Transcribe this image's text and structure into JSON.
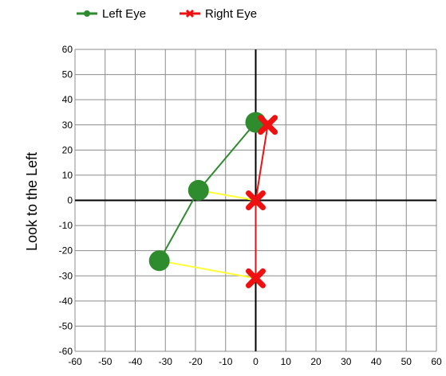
{
  "chart_data": {
    "type": "scatter",
    "title": "",
    "ylabel": "Look to the Left",
    "xlabel": "",
    "xlim": [
      -60,
      60
    ],
    "ylim": [
      -60,
      60
    ],
    "x_ticks": [
      -60,
      -50,
      -40,
      -30,
      -20,
      -10,
      0,
      10,
      20,
      30,
      40,
      50,
      60
    ],
    "y_ticks": [
      60,
      50,
      40,
      30,
      20,
      10,
      0,
      -10,
      -20,
      -30,
      -40,
      -50,
      -60
    ],
    "grid": true,
    "legend_position": "top-left",
    "series": [
      {
        "name": "Left Eye",
        "color": "#2e8b2e",
        "marker": "circle",
        "points": [
          {
            "x": 0,
            "y": 31
          },
          {
            "x": -19,
            "y": 4
          },
          {
            "x": -32,
            "y": -24
          }
        ]
      },
      {
        "name": "Right Eye",
        "color": "#ee1111",
        "marker": "x",
        "points": [
          {
            "x": 4,
            "y": 30
          },
          {
            "x": 0,
            "y": 0
          },
          {
            "x": 0,
            "y": -31
          }
        ]
      }
    ],
    "connectors": {
      "color": "#ffff33",
      "pairs": [
        [
          1,
          1
        ],
        [
          2,
          2
        ]
      ]
    }
  }
}
